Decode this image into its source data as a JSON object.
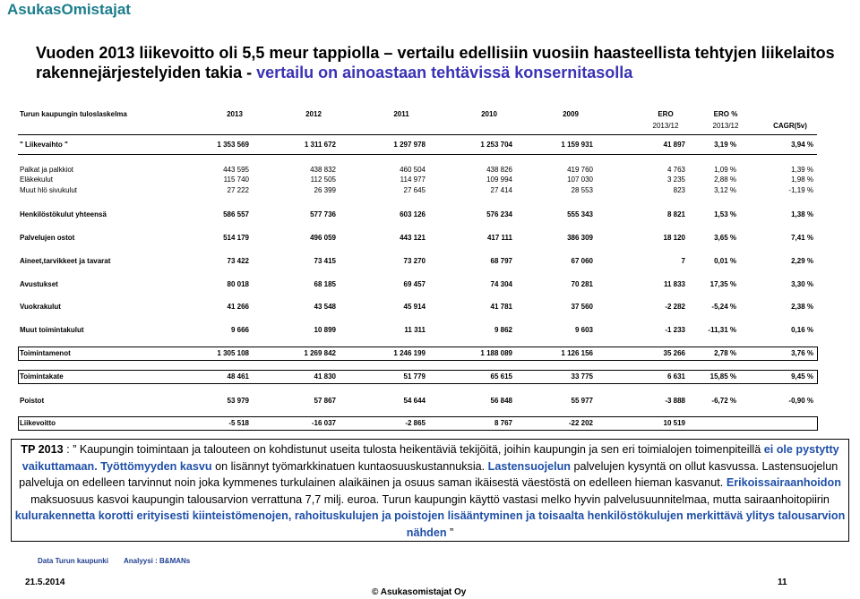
{
  "header": {
    "brand": "AsukasOmistajat"
  },
  "title": [
    {
      "text": "Vuoden 2013 liikevoitto oli 5,5 meur tappiolla – vertailu edellisiin vuosiin haasteellista tehtyjen liikelaitos rakennejärjestelyiden takia - ",
      "highlight": false
    },
    {
      "text": "vertailu on ainoastaan tehtävissä konsernitasolla",
      "highlight": true
    }
  ],
  "table": {
    "header_rows": [
      [
        "Turun kaupungin tuloslaskelma",
        "2013",
        "2012",
        "2011",
        "2010",
        "2009",
        "ERO",
        "ERO %",
        null
      ],
      [
        null,
        null,
        null,
        null,
        null,
        null,
        "2013/12",
        "2013/12",
        "CAGR(5v)"
      ]
    ],
    "rows": [
      {
        "cells": [
          "\" Liikevaihto \"",
          "1 353 569",
          "1 311 672",
          "1 297 978",
          "1 253 704",
          "1 159 931",
          "41 897",
          "3,19 %",
          "3,94 %"
        ],
        "bold": true,
        "boxed": false
      },
      {
        "cells": [
          "Palkat ja palkkiot",
          "443 595",
          "438 832",
          "460 504",
          "438 826",
          "419 760",
          "4 763",
          "1,09 %",
          "1,39 %"
        ],
        "bold": false,
        "boxed": false
      },
      {
        "cells": [
          "Eläkekulut",
          "115 740",
          "112 505",
          "114 977",
          "109 994",
          "107 030",
          "3 235",
          "2,88 %",
          "1,98 %"
        ],
        "bold": false,
        "boxed": false
      },
      {
        "cells": [
          "Muut hlö sivukulut",
          "27 222",
          "26 399",
          "27 645",
          "27 414",
          "28 553",
          "823",
          "3,12 %",
          "-1,19 %"
        ],
        "bold": false,
        "boxed": false
      },
      {
        "cells": [
          "Henkilöstökulut yhteensä",
          "586 557",
          "577 736",
          "603 126",
          "576 234",
          "555 343",
          "8 821",
          "1,53 %",
          "1,38 %"
        ],
        "bold": true,
        "boxed": false
      },
      {
        "cells": [
          "Palvelujen ostot",
          "514 179",
          "496 059",
          "443 121",
          "417 111",
          "386 309",
          "18 120",
          "3,65 %",
          "7,41 %"
        ],
        "bold": true,
        "boxed": false
      },
      {
        "cells": [
          "Aineet,tarvikkeet ja tavarat",
          "73 422",
          "73 415",
          "73 270",
          "68 797",
          "67 060",
          "7",
          "0,01 %",
          "2,29 %"
        ],
        "bold": true,
        "boxed": false
      },
      {
        "cells": [
          "Avustukset",
          "80 018",
          "68 185",
          "69 457",
          "74 304",
          "70 281",
          "11 833",
          "17,35 %",
          "3,30 %"
        ],
        "bold": true,
        "boxed": false
      },
      {
        "cells": [
          "Vuokrakulut",
          "41 266",
          "43 548",
          "45 914",
          "41 781",
          "37 560",
          "-2 282",
          "-5,24 %",
          "2,38 %"
        ],
        "bold": true,
        "boxed": false
      },
      {
        "cells": [
          "Muut toimintakulut",
          "9 666",
          "10 899",
          "11 311",
          "9 862",
          "9 603",
          "-1 233",
          "-11,31 %",
          "0,16 %"
        ],
        "bold": true,
        "boxed": false
      },
      {
        "cells": [
          "Toimintamenot",
          "1 305 108",
          "1 269 842",
          "1 246 199",
          "1 188 089",
          "1 126 156",
          "35 266",
          "2,78 %",
          "3,76 %"
        ],
        "bold": true,
        "boxed": true
      },
      {
        "cells": [
          "Toimintakate",
          "48 461",
          "41 830",
          "51 779",
          "65 615",
          "33 775",
          "6 631",
          "15,85 %",
          "9,45 %"
        ],
        "bold": true,
        "boxed": true
      },
      {
        "cells": [
          "Poistot",
          "53 979",
          "57 867",
          "54 644",
          "56 848",
          "55 977",
          "-3 888",
          "-6,72 %",
          "-0,90 %"
        ],
        "bold": true,
        "boxed": false
      },
      {
        "cells": [
          "Liikevoitto",
          "-5 518",
          "-16 037",
          "-2 865",
          "8 767",
          "-22 202",
          "10 519",
          null,
          null
        ],
        "bold": true,
        "boxed": true
      }
    ]
  },
  "note": {
    "segments": [
      {
        "text": "TP 2013",
        "highlight": false,
        "bold": true
      },
      {
        "text": " :  ” Kaupungin toimintaan ja talouteen on kohdistunut useita tulosta heikentäviä tekijöitä, joihin kaupungin ja sen eri toimialojen toimenpiteillä ",
        "highlight": false,
        "bold": false
      },
      {
        "text": "ei ole pystytty vaikuttamaan.",
        "highlight": true,
        "bold": false
      },
      {
        "text": " Työttömyyden kasvu",
        "highlight": true,
        "bold": false
      },
      {
        "text": " on lisännyt työmarkkinatuen kuntaosuuskustannuksia. ",
        "highlight": false,
        "bold": false
      },
      {
        "text": "Lastensuojelun",
        "highlight": true,
        "bold": false
      },
      {
        "text": " palvelujen kysyntä on ollut kasvussa. Lastensuojelun palveluja on edelleen tarvinnut noin joka kymmenes turkulainen alaikäinen ja osuus saman ikäisestä väestöstä on edelleen hieman kasvanut. ",
        "highlight": false,
        "bold": false
      },
      {
        "text": "Erikoissairaanhoidon",
        "highlight": true,
        "bold": false
      },
      {
        "text": " maksuosuus kasvoi kaupungin talousarvion verrattuna 7,7 milj. euroa. Turun kaupungin käyttö vastasi melko hyvin palvelusuunnitelmaa, mutta sairaanhoitopiirin ",
        "highlight": false,
        "bold": false
      },
      {
        "text": "kulurakennetta korotti erityisesti kiinteistömenojen, rahoituskulujen ja poistojen lisääntyminen ja toisaalta henkilöstökulujen merkittävä ylitys talousarvion nähden",
        "highlight": true,
        "bold": true
      },
      {
        "text": " ”",
        "highlight": false,
        "bold": false
      }
    ]
  },
  "footer": {
    "source": "Data Turun kaupunki",
    "analysis": "Analyysi : B&MANs",
    "date": "21.5.2014",
    "copyright": "© Asukasomistajat Oy",
    "page": "11"
  }
}
